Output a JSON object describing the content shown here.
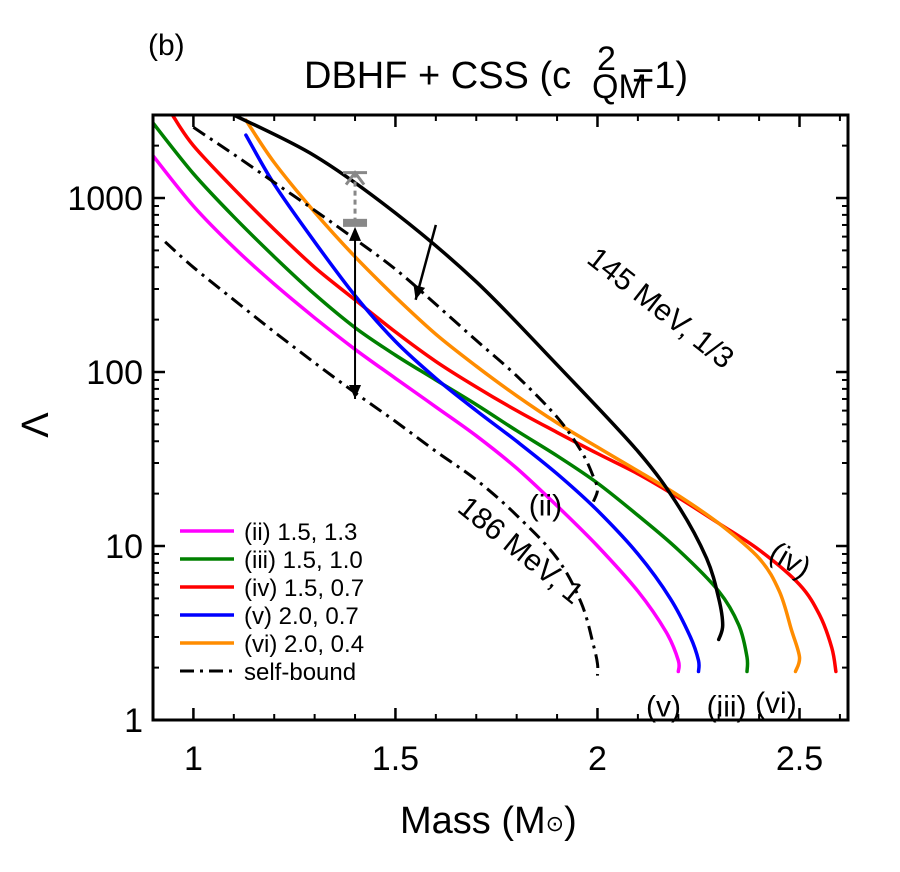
{
  "chart_data": {
    "type": "line",
    "panel_label": "(b)",
    "title": "DBHF + CSS (c",
    "title_sup": "2",
    "title_sub": "QM",
    "title_tail": "=1)",
    "xlabel": "Mass (M",
    "xlabel_sun": "⊙",
    "xlabel_tail": ")",
    "ylabel": "Λ",
    "xlim": [
      0.9,
      2.62
    ],
    "ylim": [
      1,
      3000
    ],
    "yscale": "log",
    "xticks": [
      1,
      1.5,
      2,
      2.5
    ],
    "xtick_labels": [
      "1",
      "1.5",
      "2",
      "2.5"
    ],
    "yticks": [
      1,
      10,
      100,
      1000
    ],
    "ytick_labels": [
      "1",
      "10",
      "100",
      "1000"
    ],
    "legend_position": "bottom-left",
    "series": [
      {
        "name": "(ii) 1.5, 1.3",
        "color": "#ff00ff",
        "style": "solid",
        "in_legend": true,
        "points": [
          [
            0.9,
            1750
          ],
          [
            1.0,
            900
          ],
          [
            1.1,
            520
          ],
          [
            1.2,
            320
          ],
          [
            1.3,
            205
          ],
          [
            1.4,
            135
          ],
          [
            1.5,
            92
          ],
          [
            1.6,
            63
          ],
          [
            1.7,
            43
          ],
          [
            1.8,
            28
          ],
          [
            1.9,
            17
          ],
          [
            2.0,
            10
          ],
          [
            2.1,
            5.5
          ],
          [
            2.17,
            3.2
          ],
          [
            2.2,
            2.2
          ],
          [
            2.2,
            1.9
          ]
        ]
      },
      {
        "name": "(iii) 1.5, 1.0",
        "color": "#008000",
        "style": "solid",
        "in_legend": true,
        "points": [
          [
            0.9,
            2700
          ],
          [
            1.0,
            1380
          ],
          [
            1.1,
            780
          ],
          [
            1.2,
            460
          ],
          [
            1.3,
            280
          ],
          [
            1.4,
            180
          ],
          [
            1.5,
            125
          ],
          [
            1.6,
            90
          ],
          [
            1.7,
            65
          ],
          [
            1.8,
            46
          ],
          [
            1.9,
            33
          ],
          [
            2.0,
            23
          ],
          [
            2.1,
            15
          ],
          [
            2.2,
            9.5
          ],
          [
            2.3,
            5.5
          ],
          [
            2.35,
            3.5
          ],
          [
            2.37,
            2.3
          ],
          [
            2.37,
            1.9
          ]
        ]
      },
      {
        "name": "(iv) 1.5, 0.7",
        "color": "#ff0000",
        "style": "solid",
        "in_legend": true,
        "points": [
          [
            0.95,
            2950
          ],
          [
            1.0,
            2000
          ],
          [
            1.1,
            1130
          ],
          [
            1.2,
            660
          ],
          [
            1.3,
            400
          ],
          [
            1.4,
            260
          ],
          [
            1.5,
            170
          ],
          [
            1.6,
            115
          ],
          [
            1.7,
            82
          ],
          [
            1.8,
            60
          ],
          [
            1.9,
            45
          ],
          [
            2.0,
            34
          ],
          [
            2.1,
            26
          ],
          [
            2.2,
            19
          ],
          [
            2.3,
            13.5
          ],
          [
            2.4,
            9.5
          ],
          [
            2.5,
            6
          ],
          [
            2.55,
            4
          ],
          [
            2.58,
            2.6
          ],
          [
            2.59,
            1.9
          ]
        ]
      },
      {
        "name": "(v) 2.0, 0.7",
        "color": "#0000ff",
        "style": "solid",
        "in_legend": true,
        "points": [
          [
            1.13,
            2300
          ],
          [
            1.2,
            1200
          ],
          [
            1.3,
            560
          ],
          [
            1.4,
            275
          ],
          [
            1.5,
            150
          ],
          [
            1.6,
            92
          ],
          [
            1.7,
            60
          ],
          [
            1.8,
            40
          ],
          [
            1.9,
            26
          ],
          [
            2.0,
            16
          ],
          [
            2.1,
            9
          ],
          [
            2.18,
            5
          ],
          [
            2.23,
            3
          ],
          [
            2.25,
            2.2
          ],
          [
            2.25,
            1.9
          ]
        ]
      },
      {
        "name": "(vi) 2.0, 0.4",
        "color": "#ff8c00",
        "style": "solid",
        "in_legend": true,
        "points": [
          [
            1.13,
            2800
          ],
          [
            1.2,
            1600
          ],
          [
            1.3,
            830
          ],
          [
            1.4,
            460
          ],
          [
            1.5,
            270
          ],
          [
            1.6,
            165
          ],
          [
            1.7,
            108
          ],
          [
            1.8,
            73
          ],
          [
            1.9,
            51
          ],
          [
            2.0,
            37
          ],
          [
            2.1,
            27
          ],
          [
            2.2,
            19.5
          ],
          [
            2.3,
            13.5
          ],
          [
            2.4,
            8.5
          ],
          [
            2.45,
            5.5
          ],
          [
            2.48,
            3.3
          ],
          [
            2.5,
            2.3
          ],
          [
            2.49,
            1.9
          ]
        ]
      },
      {
        "name": "145 MeV, 1/3",
        "color": "#000000",
        "style": "solid",
        "in_legend": false,
        "points": [
          [
            1.1,
            3000
          ],
          [
            1.3,
            1750
          ],
          [
            1.5,
            820
          ],
          [
            1.7,
            330
          ],
          [
            1.9,
            110
          ],
          [
            2.1,
            35
          ],
          [
            2.2,
            17
          ],
          [
            2.27,
            8.5
          ],
          [
            2.3,
            5
          ],
          [
            2.31,
            3.5
          ],
          [
            2.3,
            2.9
          ]
        ]
      },
      {
        "name": "self-bound",
        "color": "#000000",
        "style": "dashdot",
        "in_legend": true,
        "points": [
          [
            0.93,
            560
          ],
          [
            1.0,
            400
          ],
          [
            1.1,
            260
          ],
          [
            1.2,
            170
          ],
          [
            1.3,
            113
          ],
          [
            1.4,
            76
          ],
          [
            1.5,
            52
          ],
          [
            1.6,
            35
          ],
          [
            1.7,
            24
          ],
          [
            1.8,
            15
          ],
          [
            1.9,
            8.5
          ],
          [
            1.96,
            4.7
          ],
          [
            1.99,
            2.7
          ],
          [
            2.0,
            2.1
          ],
          [
            2.0,
            1.8
          ]
        ]
      },
      {
        "name": "self-bound upper",
        "color": "#000000",
        "style": "dashdot",
        "in_legend": false,
        "points": [
          [
            1.0,
            2550
          ],
          [
            1.1,
            1780
          ],
          [
            1.2,
            1230
          ],
          [
            1.3,
            850
          ],
          [
            1.4,
            580
          ],
          [
            1.5,
            390
          ],
          [
            1.6,
            245
          ],
          [
            1.7,
            152
          ],
          [
            1.8,
            95
          ],
          [
            1.9,
            55
          ],
          [
            1.96,
            35
          ],
          [
            1.99,
            25
          ],
          [
            2.0,
            21
          ],
          [
            1.99,
            18
          ]
        ]
      }
    ],
    "annotations": [
      {
        "text": "145 MeV, 1/3",
        "at": [
          1.97,
          430
        ],
        "angle": 38
      },
      {
        "text": "186 MeV, 1",
        "at": [
          1.65,
          16
        ],
        "angle": 39
      },
      {
        "text": "(ii)",
        "at": [
          1.83,
          15
        ],
        "angle": 0
      },
      {
        "text": "(iv)",
        "at": [
          2.42,
          8.5
        ],
        "angle": 30
      },
      {
        "text": "(v)",
        "at": [
          2.12,
          1.05
        ],
        "angle": 0
      },
      {
        "text": "(iii)",
        "at": [
          2.27,
          1.05
        ],
        "angle": 0
      },
      {
        "text": "(vi)",
        "at": [
          2.39,
          1.1
        ],
        "angle": 0
      }
    ],
    "constraint": {
      "x": 1.4,
      "low": 70,
      "high": 720,
      "gray_upper": 1400,
      "color": "#888888"
    },
    "arrow_145": {
      "from": [
        1.6,
        700
      ],
      "to": [
        1.55,
        260
      ]
    }
  }
}
